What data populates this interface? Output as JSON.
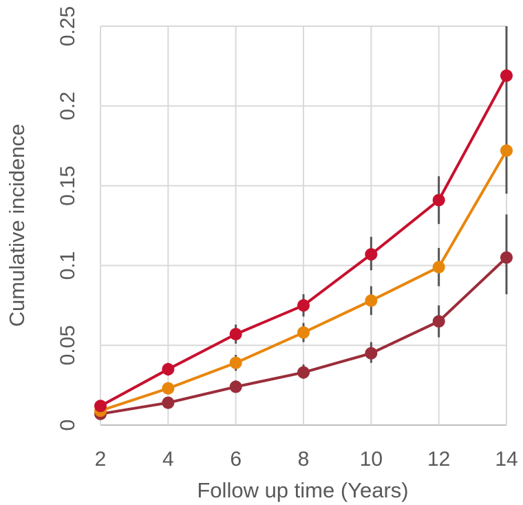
{
  "chart_data": {
    "type": "line",
    "title": "",
    "xlabel": "Follow up time (Years)",
    "ylabel": "Cumulative incidence",
    "x": [
      2,
      4,
      6,
      8,
      10,
      12,
      14
    ],
    "xlim": [
      2,
      14
    ],
    "ylim": [
      0,
      0.25
    ],
    "x_ticks": [
      "2",
      "4",
      "6",
      "8",
      "10",
      "12",
      "14"
    ],
    "y_ticks": [
      "0",
      "0.05",
      "0.1",
      "0.15",
      "0.2",
      "0.25"
    ],
    "grid": true,
    "legend": "none",
    "series": [
      {
        "color": "#c8102e",
        "values": [
          0.012,
          0.035,
          0.057,
          0.075,
          0.107,
          0.141,
          0.219
        ],
        "err_low": [
          0.009,
          0.031,
          0.051,
          0.068,
          0.097,
          0.126,
          0.19
        ],
        "err_high": [
          0.015,
          0.039,
          0.063,
          0.082,
          0.118,
          0.156,
          0.25
        ]
      },
      {
        "color": "#e8860c",
        "values": [
          0.009,
          0.023,
          0.039,
          0.058,
          0.078,
          0.099,
          0.172
        ],
        "err_low": [
          0.007,
          0.02,
          0.034,
          0.052,
          0.069,
          0.087,
          0.145
        ],
        "err_high": [
          0.011,
          0.026,
          0.044,
          0.064,
          0.087,
          0.111,
          0.2
        ]
      },
      {
        "color": "#9b2d3a",
        "values": [
          0.007,
          0.014,
          0.024,
          0.033,
          0.045,
          0.065,
          0.105
        ],
        "err_low": [
          0.005,
          0.012,
          0.021,
          0.029,
          0.039,
          0.055,
          0.082
        ],
        "err_high": [
          0.009,
          0.017,
          0.028,
          0.038,
          0.052,
          0.075,
          0.132
        ]
      }
    ]
  }
}
